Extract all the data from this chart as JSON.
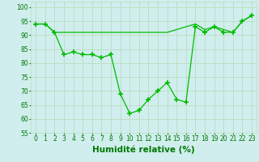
{
  "line1_x": [
    0,
    1,
    2,
    3,
    4,
    5,
    6,
    7,
    8,
    9,
    10,
    11,
    12,
    13,
    14,
    15,
    16,
    17,
    18,
    19,
    20,
    21,
    22,
    23
  ],
  "line1_y": [
    94,
    94,
    91,
    83,
    84,
    83,
    83,
    82,
    83,
    69,
    62,
    63,
    67,
    70,
    73,
    67,
    66,
    93,
    91,
    93,
    91,
    91,
    95,
    97
  ],
  "line2_x": [
    0,
    1,
    2,
    3,
    4,
    5,
    6,
    7,
    8,
    9,
    10,
    11,
    12,
    13,
    14,
    15,
    16,
    17,
    18,
    19,
    20,
    21,
    22,
    23
  ],
  "line2_y": [
    94,
    94,
    91,
    91,
    91,
    91,
    91,
    91,
    91,
    91,
    91,
    91,
    91,
    91,
    91,
    92,
    93,
    94,
    92,
    93,
    92,
    91,
    95,
    97
  ],
  "line_color": "#00bb00",
  "marker": "+",
  "marker_size": 4,
  "marker_color": "#00aa00",
  "xlabel": "Humidité relative (%)",
  "xlabel_color": "#007700",
  "xlim": [
    -0.5,
    23.5
  ],
  "ylim": [
    55,
    102
  ],
  "yticks": [
    55,
    60,
    65,
    70,
    75,
    80,
    85,
    90,
    95,
    100
  ],
  "xticks": [
    0,
    1,
    2,
    3,
    4,
    5,
    6,
    7,
    8,
    9,
    10,
    11,
    12,
    13,
    14,
    15,
    16,
    17,
    18,
    19,
    20,
    21,
    22,
    23
  ],
  "grid_color": "#bbddbb",
  "bg_color": "#d0eeee",
  "tick_color": "#007700",
  "tick_fontsize": 5.5,
  "xlabel_fontsize": 7.5
}
